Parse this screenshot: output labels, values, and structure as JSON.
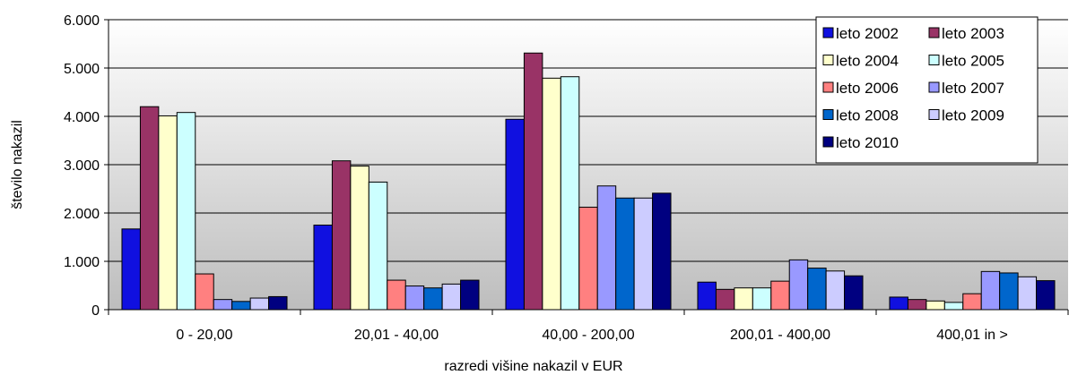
{
  "chart_data": {
    "type": "bar",
    "title": "",
    "xlabel": "razredi višine nakazil v EUR",
    "ylabel": "število nakazil",
    "ylim": [
      0,
      6000
    ],
    "yticks": [
      "0",
      "1.000",
      "2.000",
      "3.000",
      "4.000",
      "5.000",
      "6.000"
    ],
    "grid": true,
    "legend_position": "top-right",
    "categories": [
      "0 - 20,00",
      "20,01 - 40,00",
      "40,00 - 200,00",
      "200,01 - 400,00",
      "400,01 in >"
    ],
    "series": [
      {
        "name": "leto 2002",
        "color": "#1010e0",
        "values": [
          1670,
          1750,
          3940,
          570,
          260
        ]
      },
      {
        "name": "leto 2003",
        "color": "#993366",
        "values": [
          4200,
          3080,
          5310,
          420,
          210
        ]
      },
      {
        "name": "leto 2004",
        "color": "#ffffcc",
        "values": [
          4010,
          2970,
          4790,
          450,
          180
        ]
      },
      {
        "name": "leto 2005",
        "color": "#ccffff",
        "values": [
          4080,
          2640,
          4820,
          450,
          150
        ]
      },
      {
        "name": "leto 2006",
        "color": "#ff8080",
        "values": [
          740,
          610,
          2120,
          590,
          330
        ]
      },
      {
        "name": "leto 2007",
        "color": "#9999ff",
        "values": [
          210,
          490,
          2560,
          1030,
          790
        ]
      },
      {
        "name": "leto 2008",
        "color": "#0066cc",
        "values": [
          170,
          450,
          2310,
          860,
          760
        ]
      },
      {
        "name": "leto 2009",
        "color": "#ccccff",
        "values": [
          240,
          530,
          2310,
          800,
          680
        ]
      },
      {
        "name": "leto 2010",
        "color": "#000080",
        "values": [
          270,
          610,
          2410,
          700,
          600
        ]
      }
    ]
  }
}
